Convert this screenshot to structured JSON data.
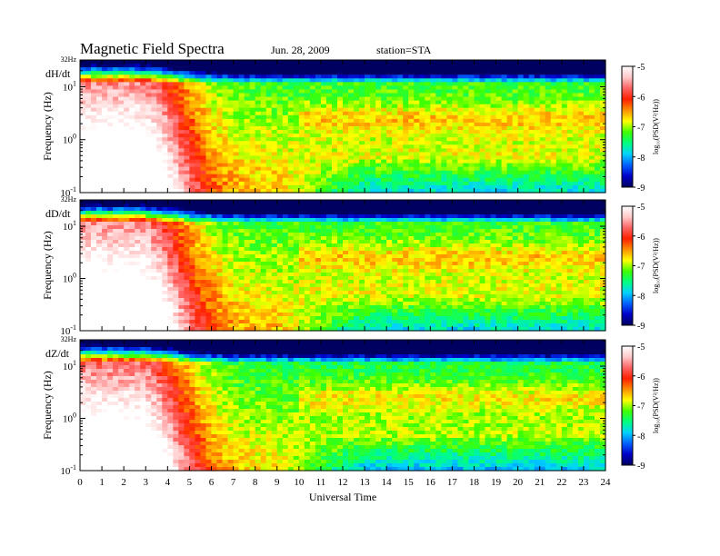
{
  "header": {
    "title": "Magnetic Field Spectra",
    "date": "Jun. 28, 2009",
    "station": "station=STA"
  },
  "chart_data": {
    "type": "heatmap",
    "xlabel": "Universal Time",
    "xlim": [
      0,
      24
    ],
    "x_ticks": [
      "0",
      "1",
      "2",
      "3",
      "4",
      "5",
      "6",
      "7",
      "8",
      "9",
      "10",
      "11",
      "12",
      "13",
      "14",
      "15",
      "16",
      "17",
      "18",
      "19",
      "20",
      "21",
      "22",
      "23",
      "24"
    ],
    "ylabel": "Frequency (Hz)",
    "y_scale": "log",
    "ylim": [
      0.1,
      32
    ],
    "y_tick_labels": [
      {
        "base": "10",
        "exp": "-1",
        "value": 0.1
      },
      {
        "base": "10",
        "exp": "0",
        "value": 1
      },
      {
        "base": "10",
        "exp": "1",
        "value": 10
      }
    ],
    "y_top_label": "32Hz",
    "colorbar": {
      "label": "log₁₀(PSD(V²/Hz))",
      "range": [
        -9,
        -5
      ],
      "ticks": [
        "-5",
        "-6",
        "-7",
        "-8",
        "-9"
      ],
      "colormap": [
        "#000060",
        "#0000c8",
        "#0060ff",
        "#00d2ff",
        "#00ff80",
        "#40ff00",
        "#ffff00",
        "#ff9000",
        "#ff2000",
        "#ff6464",
        "#ffc8c8",
        "#ffffff"
      ]
    },
    "panels": [
      {
        "name": "dH/dt"
      },
      {
        "name": "dD/dt"
      },
      {
        "name": "dZ/dt"
      }
    ]
  }
}
